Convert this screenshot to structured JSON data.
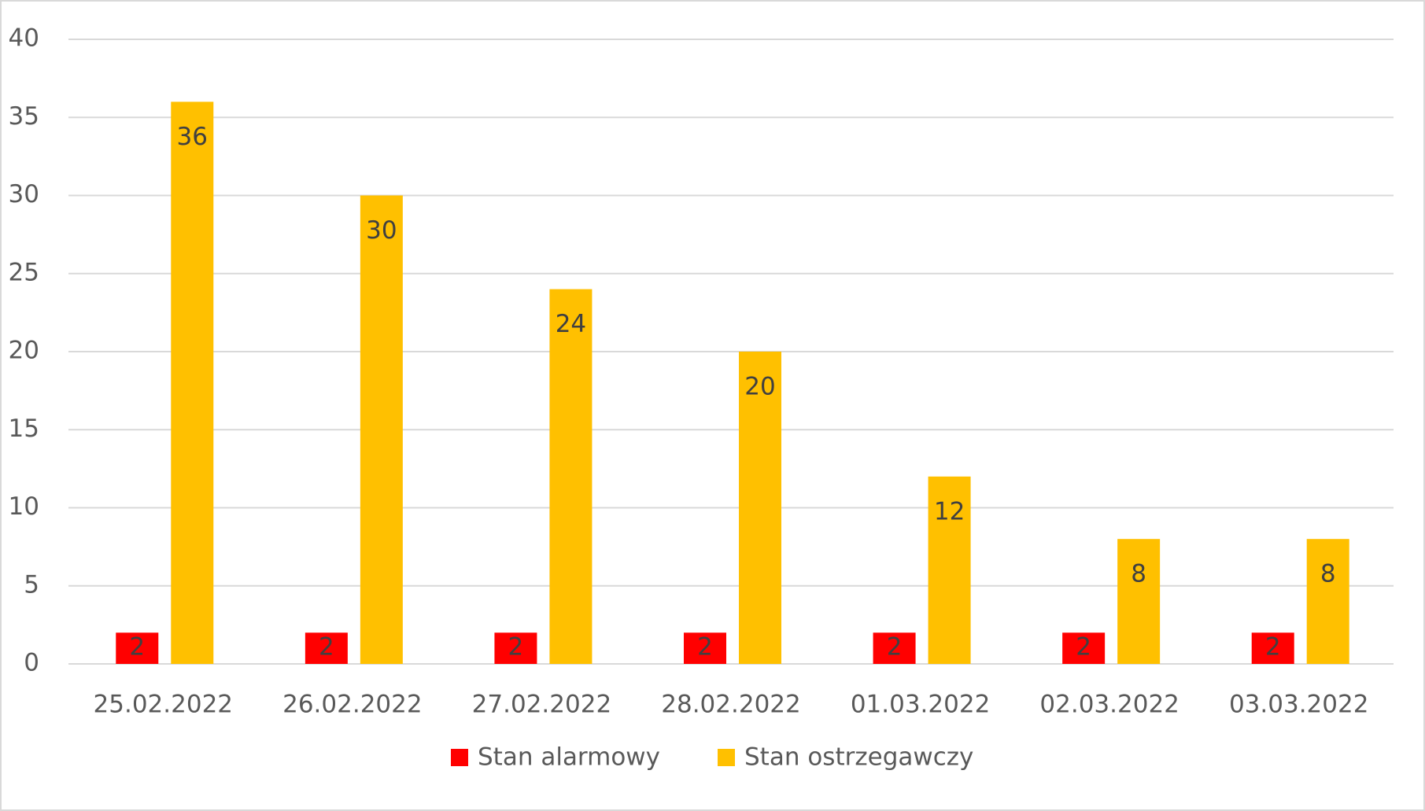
{
  "chart_data": {
    "type": "bar",
    "categories": [
      "25.02.2022",
      "26.02.2022",
      "27.02.2022",
      "28.02.2022",
      "01.03.2022",
      "02.03.2022",
      "03.03.2022"
    ],
    "series": [
      {
        "name": "Stan alarmowy",
        "color": "#ff0000",
        "values": [
          2,
          2,
          2,
          2,
          2,
          2,
          2
        ]
      },
      {
        "name": "Stan ostrzegawczy",
        "color": "#ffc000",
        "values": [
          36,
          30,
          24,
          20,
          12,
          8,
          8
        ]
      }
    ],
    "ylim": [
      0,
      40
    ],
    "yticks": [
      0,
      5,
      10,
      15,
      20,
      25,
      30,
      35,
      40
    ],
    "grid": true,
    "legend": "bottom"
  }
}
